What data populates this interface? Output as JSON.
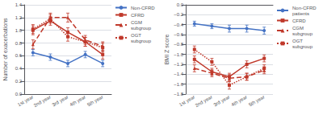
{
  "chart_data": [
    {
      "type": "line",
      "ylabel": "Number of exacerbations",
      "categories": [
        "1st year",
        "2nd year",
        "3rd year",
        "4th year",
        "5th year"
      ],
      "series": [
        {
          "name": "Non-CFRD",
          "color": "#4472c4",
          "marker": "circle",
          "line_style": "solid",
          "values": [
            0.65,
            0.58,
            0.48,
            0.62,
            0.48
          ],
          "errors": [
            0.05,
            0.05,
            0.05,
            0.05,
            0.05
          ]
        },
        {
          "name": "CFRD",
          "color": "#c0392b",
          "marker": "square",
          "line_style": "solid",
          "values": [
            1.0,
            1.15,
            0.97,
            0.82,
            0.62
          ],
          "errors": [
            0.07,
            0.07,
            0.07,
            0.07,
            0.07
          ]
        },
        {
          "name": "CGM\nsubgroup",
          "color": "#c0392b",
          "marker": "triangle",
          "line_style": "dashed",
          "values": [
            0.78,
            1.2,
            1.2,
            0.85,
            0.75
          ],
          "errors": [
            0.07,
            0.07,
            0.07,
            0.07,
            0.07
          ]
        },
        {
          "name": "OGT\nsubgroup",
          "color": "#c0392b",
          "marker": "square",
          "line_style": "dotted",
          "values": [
            1.02,
            1.18,
            0.9,
            0.82,
            0.73
          ],
          "errors": [
            0.07,
            0.07,
            0.07,
            0.07,
            0.07
          ]
        }
      ],
      "ylim": [
        0,
        1.4
      ],
      "yticks": [
        {
          "value": 0,
          "label": "0.0"
        },
        0.2,
        0.4,
        0.6,
        0.8,
        {
          "value": 1.0,
          "label": "1.0"
        },
        1.2,
        1.4
      ],
      "grid": true,
      "legend": "upper right"
    },
    {
      "type": "line",
      "ylabel": "BMI Z score",
      "categories": [
        "1st year",
        "2nd year",
        "3rd year",
        "4th year",
        "5th year"
      ],
      "series": [
        {
          "name": "Non-CFRD\npatients",
          "color": "#4472c4",
          "marker": "circle",
          "line_style": "solid",
          "values": [
            -0.38,
            -0.43,
            -0.48,
            -0.48,
            -0.52
          ],
          "errors": [
            0.05,
            0.05,
            0.07,
            0.07,
            0.07
          ]
        },
        {
          "name": "CFRD",
          "color": "#c0392b",
          "marker": "square",
          "line_style": "solid",
          "values": [
            -1.1,
            -1.35,
            -1.45,
            -1.2,
            -1.08
          ],
          "errors": [
            0.07,
            0.07,
            0.07,
            0.07,
            0.07
          ]
        },
        {
          "name": "CGM\nsubgroup",
          "color": "#c0392b",
          "marker": "triangle",
          "line_style": "dashed",
          "values": [
            -1.28,
            -1.38,
            -1.48,
            -1.45,
            -1.32
          ],
          "errors": [
            0.07,
            0.07,
            0.07,
            0.07,
            0.07
          ]
        },
        {
          "name": "OGT\nsubgroup",
          "color": "#c0392b",
          "marker": "square",
          "line_style": "dotted",
          "values": [
            -0.9,
            -1.15,
            -1.62,
            -1.45,
            -1.28
          ],
          "errors": [
            0.07,
            0.07,
            0.08,
            0.07,
            0.07
          ]
        }
      ],
      "ylim": [
        -1.8,
        0
      ],
      "yticks": [
        {
          "value": -1.8,
          "label": "−1.8"
        },
        {
          "value": -1.6,
          "label": "−1.6"
        },
        {
          "value": -1.4,
          "label": "−1.4"
        },
        {
          "value": -1.2,
          "label": "−1.2"
        },
        {
          "value": -1.0,
          "label": "−1.0"
        },
        {
          "value": -0.8,
          "label": "−0.8"
        },
        {
          "value": -0.6,
          "label": "−0.6"
        },
        {
          "value": -0.4,
          "label": "−0.4"
        },
        {
          "value": -0.2,
          "label": "−0.2"
        },
        {
          "value": 0,
          "label": "0.0"
        }
      ],
      "grid": true,
      "legend": "upper right"
    }
  ]
}
